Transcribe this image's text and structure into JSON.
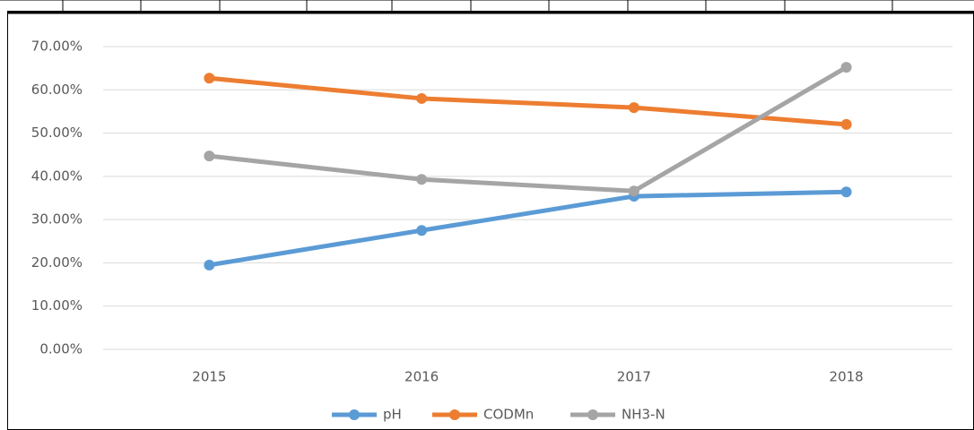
{
  "chart_data": {
    "type": "line",
    "categories": [
      "2015",
      "2016",
      "2017",
      "2018"
    ],
    "series": [
      {
        "name": "pH",
        "color": "#5b9bd5",
        "values": [
          19.5,
          27.5,
          35.4,
          36.4
        ]
      },
      {
        "name": "CODMn",
        "color": "#ed7d31",
        "values": [
          62.7,
          58.0,
          55.9,
          52.0
        ]
      },
      {
        "name": "NH3-N",
        "color": "#a5a5a5",
        "values": [
          44.7,
          39.3,
          36.6,
          65.2
        ]
      }
    ],
    "ylim": [
      0,
      70
    ],
    "yticks": [
      {
        "value": 0,
        "label": "0.00%"
      },
      {
        "value": 10,
        "label": "10.00%"
      },
      {
        "value": 20,
        "label": "20.00%"
      },
      {
        "value": 30,
        "label": "30.00%"
      },
      {
        "value": 40,
        "label": "40.00%"
      },
      {
        "value": 50,
        "label": "50.00%"
      },
      {
        "value": 60,
        "label": "60.00%"
      },
      {
        "value": 70,
        "label": "70.00%"
      }
    ],
    "grid": true,
    "legend": "bottom"
  }
}
